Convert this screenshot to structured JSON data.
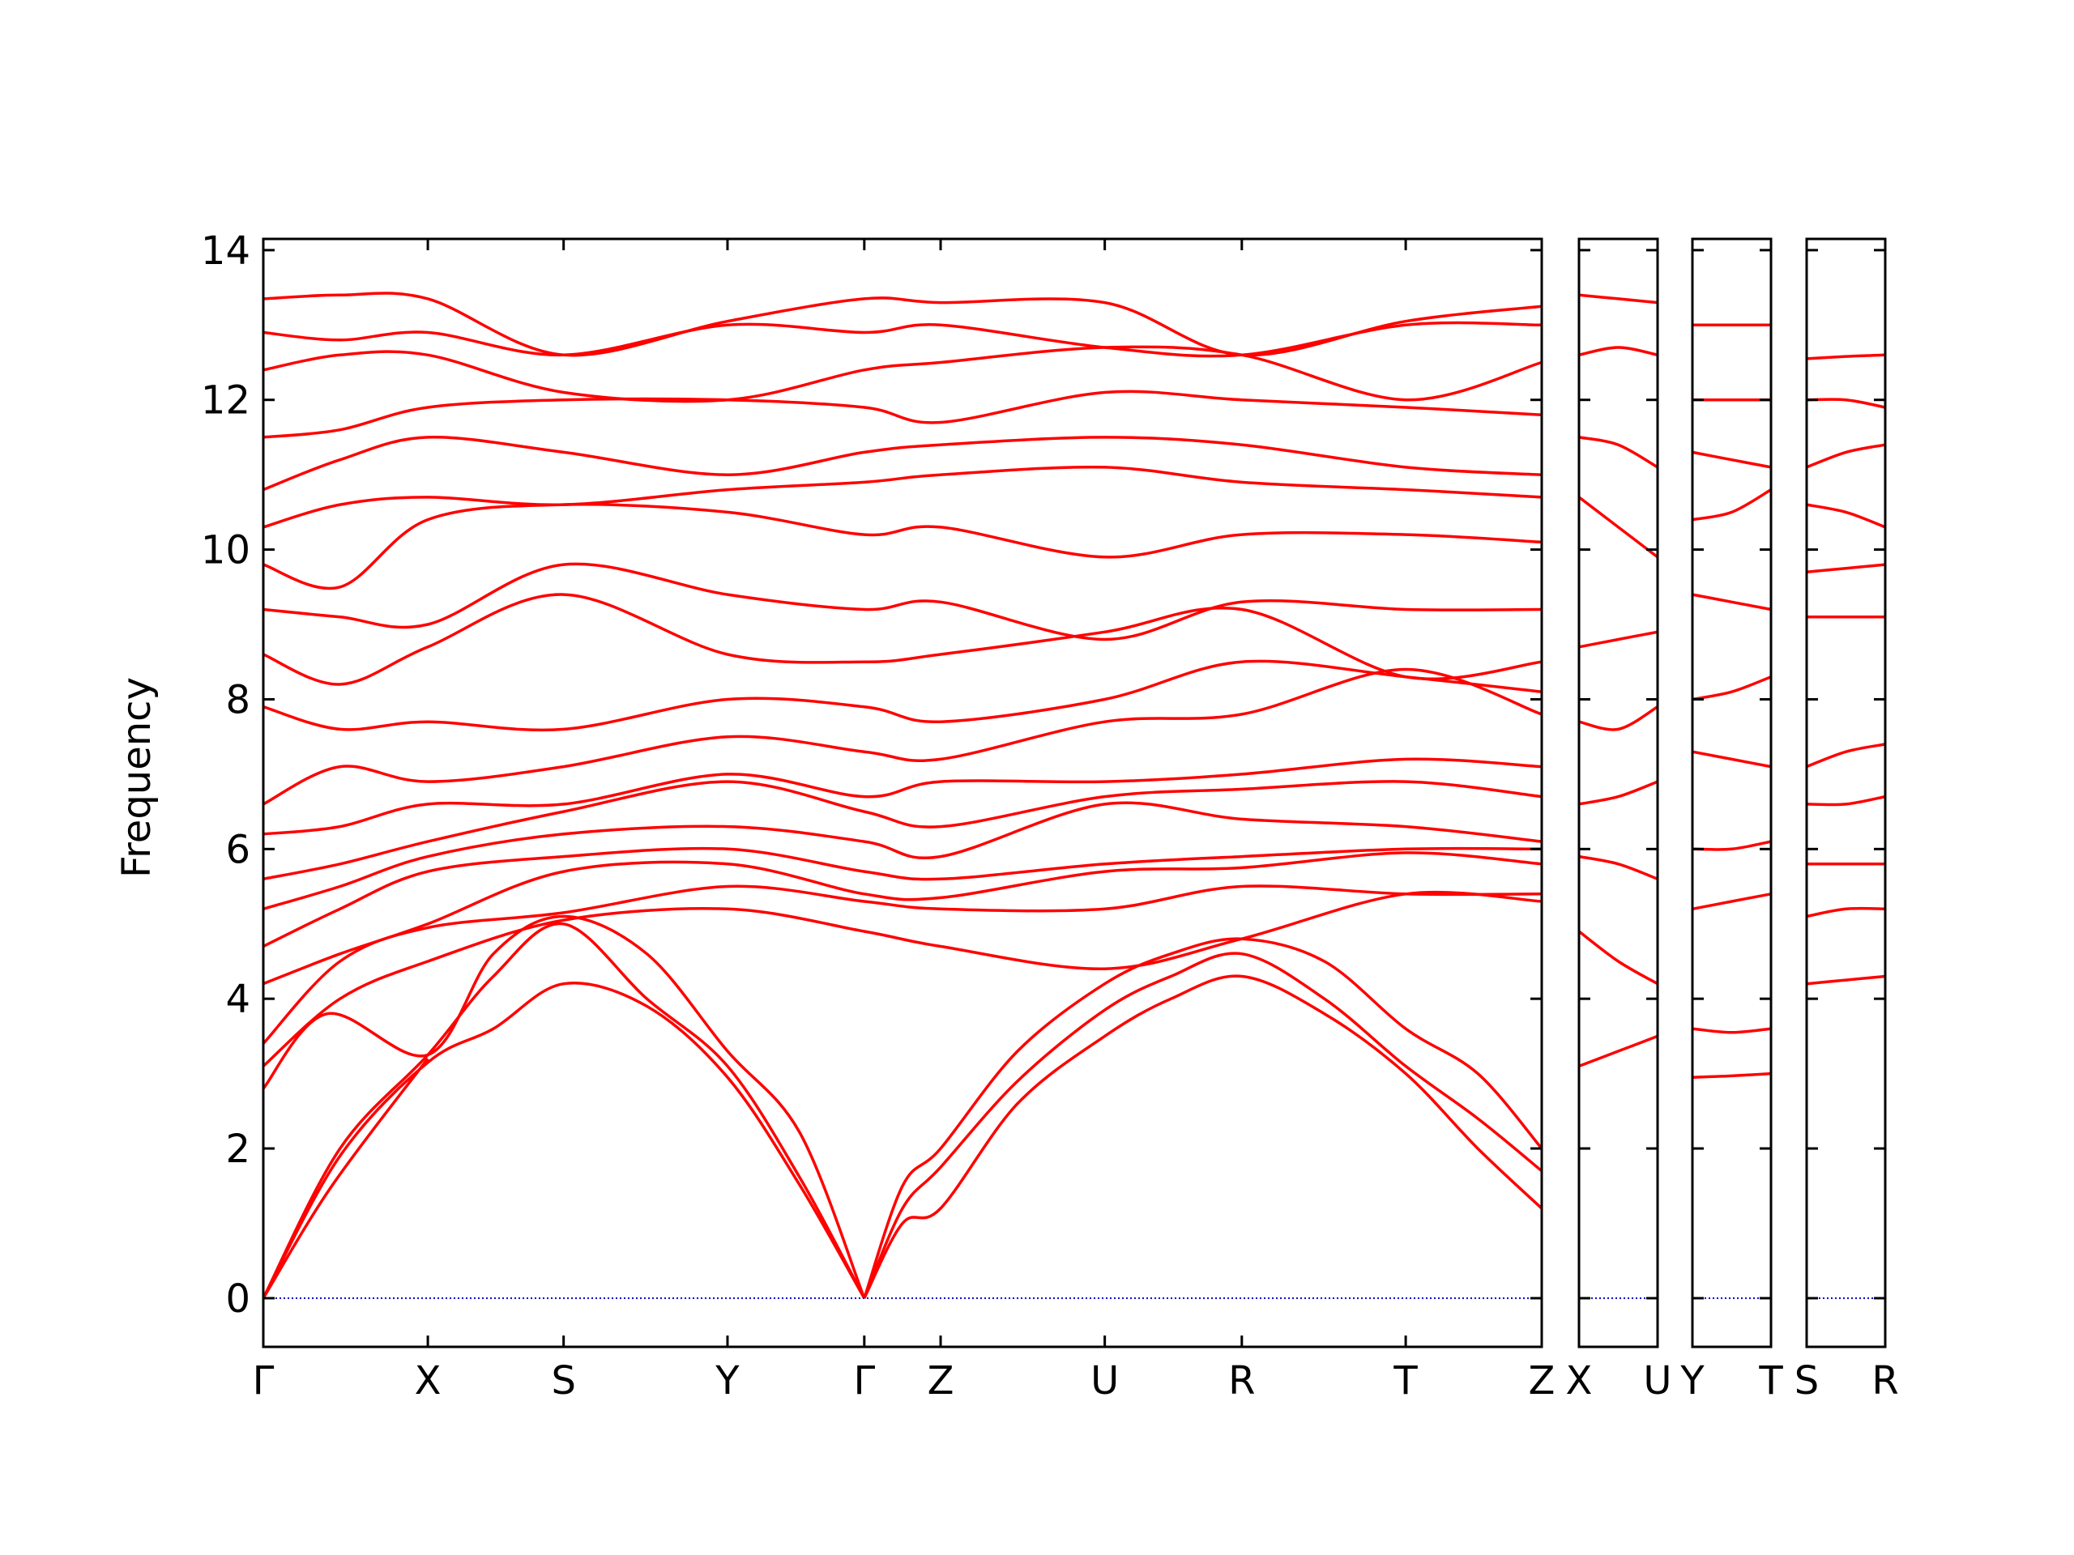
{
  "chart_data": {
    "type": "line",
    "title": "",
    "ylabel": "Frequency",
    "xlabel": "",
    "ylim": [
      -0.65,
      14.15
    ],
    "yticks": [
      0,
      2,
      4,
      6,
      8,
      10,
      12,
      14
    ],
    "ytick_labels": [
      "0",
      "2",
      "4",
      "6",
      "8",
      "10",
      "12",
      "14"
    ],
    "grid": false,
    "zero_line_color": "#0000cc",
    "band_color": "#ff0000",
    "segments": [
      {
        "path": "main",
        "labels": [
          "Γ",
          "X",
          "S",
          "Y",
          "Γ",
          "Z",
          "U",
          "R",
          "T",
          "Z"
        ],
        "positions": [
          0,
          0.1287,
          0.2349,
          0.3631,
          0.4701,
          0.5298,
          0.6582,
          0.7654,
          0.8936,
          1
        ]
      },
      {
        "path": "XU",
        "labels": [
          "X",
          "U"
        ],
        "positions": [
          0,
          1
        ]
      },
      {
        "path": "YT",
        "labels": [
          "Y",
          "T"
        ],
        "positions": [
          0,
          1
        ]
      },
      {
        "path": "SR",
        "labels": [
          "S",
          "R"
        ],
        "positions": [
          0,
          1
        ]
      }
    ],
    "series": [
      {
        "path": "main",
        "x": [
          0,
          0.06,
          0.1287,
          0.18,
          0.2349,
          0.3,
          0.3631,
          0.42,
          0.4701
        ],
        "values": [
          0,
          1.9,
          3.15,
          3.6,
          4.2,
          3.9,
          2.95,
          1.5,
          0
        ]
      },
      {
        "path": "main",
        "x": [
          0,
          0.06,
          0.1287,
          0.18,
          0.2349,
          0.3,
          0.3631,
          0.42,
          0.4701
        ],
        "values": [
          0,
          2.0,
          3.25,
          4.3,
          5.0,
          4.0,
          3.1,
          1.6,
          0
        ]
      },
      {
        "path": "main",
        "x": [
          0,
          0.05,
          0.1287,
          0.18,
          0.2349,
          0.3,
          0.3631,
          0.42,
          0.4701
        ],
        "values": [
          2.8,
          3.8,
          3.25,
          4.6,
          5.1,
          4.6,
          3.3,
          2.2,
          0
        ]
      },
      {
        "path": "main",
        "x": [
          0.4701,
          0.5,
          0.5298,
          0.59,
          0.6582,
          0.71,
          0.7654,
          0.83,
          0.8936,
          0.95,
          1
        ],
        "values": [
          0,
          1.0,
          1.2,
          2.6,
          3.5,
          4.0,
          4.3,
          3.8,
          3.0,
          2.0,
          1.2
        ]
      },
      {
        "path": "main",
        "x": [
          0.4701,
          0.5,
          0.5298,
          0.59,
          0.6582,
          0.71,
          0.7654,
          0.83,
          0.8936,
          0.95,
          1
        ],
        "values": [
          0,
          1.2,
          1.75,
          2.9,
          3.85,
          4.3,
          4.6,
          4.0,
          3.1,
          2.4,
          1.7
        ]
      },
      {
        "path": "main",
        "x": [
          0.4701,
          0.5,
          0.5298,
          0.59,
          0.6582,
          0.71,
          0.7654,
          0.83,
          0.8936,
          0.95,
          1
        ],
        "values": [
          0,
          1.5,
          2.0,
          3.3,
          4.2,
          4.6,
          4.8,
          4.5,
          3.6,
          3.0,
          2.0
        ]
      },
      {
        "path": "main",
        "x": [
          0,
          0.06,
          0.1287,
          0.2349,
          0.3631,
          0.4701,
          0.5298,
          0.6582,
          0.7654,
          0.8936,
          1
        ],
        "values": [
          3.1,
          4.0,
          4.5,
          5.05,
          5.2,
          4.9,
          4.7,
          4.4,
          4.8,
          5.4,
          5.3
        ]
      },
      {
        "path": "main",
        "x": [
          0,
          0.06,
          0.1287,
          0.2349,
          0.3631,
          0.4701,
          0.5298,
          0.6582,
          0.7654,
          0.8936,
          1
        ],
        "values": [
          3.4,
          4.5,
          4.95,
          5.15,
          5.5,
          5.3,
          5.2,
          5.2,
          5.5,
          5.4,
          5.4
        ]
      },
      {
        "path": "main",
        "x": [
          0,
          0.06,
          0.1287,
          0.2349,
          0.3631,
          0.4701,
          0.5298,
          0.6582,
          0.7654,
          0.8936,
          1
        ],
        "values": [
          4.2,
          4.6,
          5.0,
          5.7,
          5.8,
          5.4,
          5.35,
          5.7,
          5.75,
          5.95,
          5.8
        ]
      },
      {
        "path": "main",
        "x": [
          0,
          0.06,
          0.1287,
          0.2349,
          0.3631,
          0.4701,
          0.5298,
          0.6582,
          0.7654,
          0.8936,
          1
        ],
        "values": [
          4.7,
          5.2,
          5.7,
          5.9,
          6.0,
          5.7,
          5.6,
          5.8,
          5.9,
          6.0,
          6.0
        ]
      },
      {
        "path": "main",
        "x": [
          0,
          0.06,
          0.1287,
          0.2349,
          0.3631,
          0.4701,
          0.5298,
          0.6582,
          0.7654,
          0.8936,
          1
        ],
        "values": [
          5.2,
          5.5,
          5.9,
          6.2,
          6.3,
          6.1,
          5.9,
          6.6,
          6.4,
          6.3,
          6.1
        ]
      },
      {
        "path": "main",
        "x": [
          0,
          0.06,
          0.1287,
          0.2349,
          0.3631,
          0.4701,
          0.5298,
          0.6582,
          0.7654,
          0.8936,
          1
        ],
        "values": [
          5.6,
          5.8,
          6.1,
          6.5,
          6.9,
          6.5,
          6.3,
          6.7,
          6.8,
          6.9,
          6.7
        ]
      },
      {
        "path": "main",
        "x": [
          0,
          0.06,
          0.1287,
          0.2349,
          0.3631,
          0.4701,
          0.5298,
          0.6582,
          0.7654,
          0.8936,
          1
        ],
        "values": [
          6.2,
          6.3,
          6.6,
          6.6,
          7.0,
          6.7,
          6.9,
          6.9,
          7.0,
          7.2,
          7.1
        ]
      },
      {
        "path": "main",
        "x": [
          0,
          0.06,
          0.1287,
          0.2349,
          0.3631,
          0.4701,
          0.5298,
          0.6582,
          0.7654,
          0.8936,
          1
        ],
        "values": [
          6.6,
          7.1,
          6.9,
          7.1,
          7.5,
          7.3,
          7.2,
          7.7,
          7.8,
          8.4,
          7.8
        ]
      },
      {
        "path": "main",
        "x": [
          0,
          0.06,
          0.1287,
          0.2349,
          0.3631,
          0.4701,
          0.5298,
          0.6582,
          0.7654,
          0.8936,
          1
        ],
        "values": [
          7.9,
          7.6,
          7.7,
          7.6,
          8.0,
          7.9,
          7.7,
          8.0,
          8.5,
          8.3,
          8.1
        ]
      },
      {
        "path": "main",
        "x": [
          0,
          0.06,
          0.1287,
          0.2349,
          0.3631,
          0.4701,
          0.5298,
          0.6582,
          0.7654,
          0.8936,
          1
        ],
        "values": [
          8.6,
          8.2,
          8.7,
          9.4,
          8.6,
          8.5,
          8.6,
          8.9,
          9.2,
          8.3,
          8.5
        ]
      },
      {
        "path": "main",
        "x": [
          0,
          0.06,
          0.1287,
          0.2349,
          0.3631,
          0.4701,
          0.5298,
          0.6582,
          0.7654,
          0.8936,
          1
        ],
        "values": [
          9.2,
          9.1,
          9.0,
          9.8,
          9.4,
          9.2,
          9.3,
          8.8,
          9.3,
          9.2,
          9.2
        ]
      },
      {
        "path": "main",
        "x": [
          0,
          0.06,
          0.1287,
          0.2349,
          0.3631,
          0.4701,
          0.5298,
          0.6582,
          0.7654,
          0.8936,
          1
        ],
        "values": [
          9.8,
          9.5,
          10.4,
          10.6,
          10.5,
          10.2,
          10.3,
          9.9,
          10.2,
          10.2,
          10.1
        ]
      },
      {
        "path": "main",
        "x": [
          0,
          0.06,
          0.1287,
          0.2349,
          0.3631,
          0.4701,
          0.5298,
          0.6582,
          0.7654,
          0.8936,
          1
        ],
        "values": [
          10.3,
          10.6,
          10.7,
          10.6,
          10.8,
          10.9,
          11.0,
          11.1,
          10.9,
          10.8,
          10.7
        ]
      },
      {
        "path": "main",
        "x": [
          0,
          0.06,
          0.1287,
          0.2349,
          0.3631,
          0.4701,
          0.5298,
          0.6582,
          0.7654,
          0.8936,
          1
        ],
        "values": [
          10.8,
          11.2,
          11.5,
          11.3,
          11.0,
          11.3,
          11.4,
          11.5,
          11.4,
          11.1,
          11.0
        ]
      },
      {
        "path": "main",
        "x": [
          0,
          0.06,
          0.1287,
          0.2349,
          0.3631,
          0.4701,
          0.5298,
          0.6582,
          0.7654,
          0.8936,
          1
        ],
        "values": [
          11.5,
          11.6,
          11.9,
          12.0,
          12.0,
          11.9,
          11.7,
          12.1,
          12.0,
          11.9,
          11.8
        ]
      },
      {
        "path": "main",
        "x": [
          0,
          0.06,
          0.1287,
          0.2349,
          0.3631,
          0.4701,
          0.5298,
          0.6582,
          0.7654,
          0.8936,
          1
        ],
        "values": [
          12.4,
          12.6,
          12.6,
          12.1,
          12.0,
          12.4,
          12.5,
          12.7,
          12.6,
          12.0,
          12.5
        ]
      },
      {
        "path": "main",
        "x": [
          0,
          0.06,
          0.1287,
          0.2349,
          0.3631,
          0.4701,
          0.5298,
          0.6582,
          0.7654,
          0.8936,
          1
        ],
        "values": [
          12.9,
          12.8,
          12.9,
          12.6,
          13.0,
          12.9,
          13.0,
          12.7,
          12.6,
          13.0,
          13.0
        ]
      },
      {
        "path": "main",
        "x": [
          0,
          0.06,
          0.1287,
          0.2349,
          0.3631,
          0.4701,
          0.5298,
          0.6582,
          0.7654,
          0.8936,
          1
        ],
        "values": [
          13.35,
          13.4,
          13.35,
          12.6,
          13.05,
          13.35,
          13.3,
          13.3,
          12.6,
          13.05,
          13.25
        ]
      },
      {
        "path": "main",
        "x": [
          0,
          0.0536,
          0.1287
        ],
        "values": [
          0,
          1.5,
          3.2
        ]
      },
      {
        "path": "XU",
        "x": [
          0,
          0.5,
          1
        ],
        "values": [
          3.1,
          3.3,
          3.5
        ]
      },
      {
        "path": "XU",
        "x": [
          0,
          0.5,
          1
        ],
        "values": [
          4.9,
          4.5,
          4.2
        ]
      },
      {
        "path": "XU",
        "x": [
          0,
          0.5,
          1
        ],
        "values": [
          5.9,
          5.8,
          5.6
        ]
      },
      {
        "path": "XU",
        "x": [
          0,
          0.5,
          1
        ],
        "values": [
          6.6,
          6.7,
          6.9
        ]
      },
      {
        "path": "XU",
        "x": [
          0,
          0.5,
          1
        ],
        "values": [
          7.7,
          7.6,
          7.9
        ]
      },
      {
        "path": "XU",
        "x": [
          0,
          0.5,
          1
        ],
        "values": [
          8.7,
          8.8,
          8.9
        ]
      },
      {
        "path": "XU",
        "x": [
          0,
          0.5,
          1
        ],
        "values": [
          10.7,
          10.3,
          9.9
        ]
      },
      {
        "path": "XU",
        "x": [
          0,
          0.5,
          1
        ],
        "values": [
          11.5,
          11.4,
          11.1
        ]
      },
      {
        "path": "XU",
        "x": [
          0,
          0.5,
          1
        ],
        "values": [
          12.6,
          12.7,
          12.6
        ]
      },
      {
        "path": "XU",
        "x": [
          0,
          0.5,
          1
        ],
        "values": [
          13.4,
          13.35,
          13.3
        ]
      },
      {
        "path": "YT",
        "x": [
          0,
          0.5,
          1
        ],
        "values": [
          2.95,
          2.97,
          3.0
        ]
      },
      {
        "path": "YT",
        "x": [
          0,
          0.5,
          1
        ],
        "values": [
          3.6,
          3.55,
          3.6
        ]
      },
      {
        "path": "YT",
        "x": [
          0,
          0.5,
          1
        ],
        "values": [
          5.2,
          5.3,
          5.4
        ]
      },
      {
        "path": "YT",
        "x": [
          0,
          0.5,
          1
        ],
        "values": [
          6.0,
          6.0,
          6.1
        ]
      },
      {
        "path": "YT",
        "x": [
          0,
          0.5,
          1
        ],
        "values": [
          7.3,
          7.2,
          7.1
        ]
      },
      {
        "path": "YT",
        "x": [
          0,
          0.5,
          1
        ],
        "values": [
          8.0,
          8.1,
          8.3
        ]
      },
      {
        "path": "YT",
        "x": [
          0,
          0.5,
          1
        ],
        "values": [
          9.4,
          9.3,
          9.2
        ]
      },
      {
        "path": "YT",
        "x": [
          0,
          0.5,
          1
        ],
        "values": [
          10.4,
          10.5,
          10.8
        ]
      },
      {
        "path": "YT",
        "x": [
          0,
          0.5,
          1
        ],
        "values": [
          11.3,
          11.2,
          11.1
        ]
      },
      {
        "path": "YT",
        "x": [
          0,
          0.5,
          1
        ],
        "values": [
          12.0,
          12.0,
          12.0
        ]
      },
      {
        "path": "YT",
        "x": [
          0,
          0.5,
          1
        ],
        "values": [
          13.0,
          13.0,
          13.0
        ]
      },
      {
        "path": "SR",
        "x": [
          0,
          0.5,
          1
        ],
        "values": [
          4.2,
          4.25,
          4.3
        ]
      },
      {
        "path": "SR",
        "x": [
          0,
          0.5,
          1
        ],
        "values": [
          5.1,
          5.2,
          5.2
        ]
      },
      {
        "path": "SR",
        "x": [
          0,
          0.5,
          1
        ],
        "values": [
          5.8,
          5.8,
          5.8
        ]
      },
      {
        "path": "SR",
        "x": [
          0,
          0.5,
          1
        ],
        "values": [
          6.6,
          6.6,
          6.7
        ]
      },
      {
        "path": "SR",
        "x": [
          0,
          0.5,
          1
        ],
        "values": [
          7.1,
          7.3,
          7.4
        ]
      },
      {
        "path": "SR",
        "x": [
          0,
          0.5,
          1
        ],
        "values": [
          9.1,
          9.1,
          9.1
        ]
      },
      {
        "path": "SR",
        "x": [
          0,
          0.5,
          1
        ],
        "values": [
          9.7,
          9.75,
          9.8
        ]
      },
      {
        "path": "SR",
        "x": [
          0,
          0.5,
          1
        ],
        "values": [
          10.6,
          10.5,
          10.3
        ]
      },
      {
        "path": "SR",
        "x": [
          0,
          0.5,
          1
        ],
        "values": [
          11.1,
          11.3,
          11.4
        ]
      },
      {
        "path": "SR",
        "x": [
          0,
          0.5,
          1
        ],
        "values": [
          12.0,
          12.0,
          11.9
        ]
      },
      {
        "path": "SR",
        "x": [
          0,
          0.5,
          1
        ],
        "values": [
          12.55,
          12.58,
          12.6
        ]
      }
    ]
  }
}
